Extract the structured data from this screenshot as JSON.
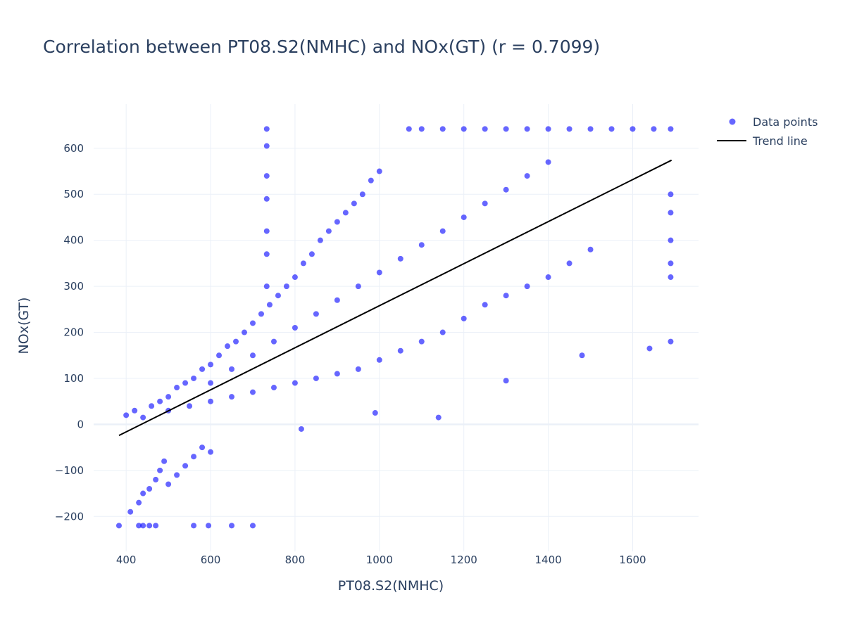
{
  "chart_data": {
    "type": "scatter",
    "title": "Correlation between PT08.S2(NMHC) and NOx(GT) (r = 0.7099)",
    "xlabel": "PT08.S2(NMHC)",
    "ylabel": "NOx(GT)",
    "xlim": [
      323,
      1756
    ],
    "ylim": [
      -276,
      696
    ],
    "xticks": [
      400,
      600,
      800,
      1000,
      1200,
      1400,
      1600
    ],
    "yticks": [
      -200,
      -100,
      0,
      100,
      200,
      300,
      400,
      500,
      600
    ],
    "grid": true,
    "legend_position": "top-right",
    "colors": {
      "points": "#0000ff",
      "trend": "#000000",
      "grid": "#ebf0f8",
      "text": "#2a3f5f"
    },
    "series": [
      {
        "name": "Data points",
        "mode": "markers",
        "points": [
          [
            383,
            -220
          ],
          [
            430,
            -220
          ],
          [
            440,
            -220
          ],
          [
            455,
            -220
          ],
          [
            470,
            -220
          ],
          [
            560,
            -220
          ],
          [
            595,
            -220
          ],
          [
            650,
            -220
          ],
          [
            700,
            -220
          ],
          [
            410,
            -190
          ],
          [
            430,
            -170
          ],
          [
            440,
            -150
          ],
          [
            455,
            -140
          ],
          [
            470,
            -120
          ],
          [
            480,
            -100
          ],
          [
            490,
            -80
          ],
          [
            500,
            -130
          ],
          [
            520,
            -110
          ],
          [
            540,
            -90
          ],
          [
            560,
            -70
          ],
          [
            580,
            -50
          ],
          [
            600,
            -60
          ],
          [
            400,
            20
          ],
          [
            420,
            30
          ],
          [
            440,
            15
          ],
          [
            460,
            40
          ],
          [
            480,
            50
          ],
          [
            500,
            60
          ],
          [
            520,
            80
          ],
          [
            540,
            90
          ],
          [
            560,
            100
          ],
          [
            580,
            120
          ],
          [
            600,
            130
          ],
          [
            620,
            150
          ],
          [
            640,
            170
          ],
          [
            660,
            180
          ],
          [
            680,
            200
          ],
          [
            700,
            220
          ],
          [
            720,
            240
          ],
          [
            740,
            260
          ],
          [
            760,
            280
          ],
          [
            780,
            300
          ],
          [
            800,
            320
          ],
          [
            820,
            350
          ],
          [
            840,
            370
          ],
          [
            860,
            400
          ],
          [
            880,
            420
          ],
          [
            900,
            440
          ],
          [
            920,
            460
          ],
          [
            940,
            480
          ],
          [
            960,
            500
          ],
          [
            980,
            530
          ],
          [
            1000,
            550
          ],
          [
            500,
            30
          ],
          [
            550,
            40
          ],
          [
            600,
            50
          ],
          [
            650,
            60
          ],
          [
            700,
            70
          ],
          [
            750,
            80
          ],
          [
            800,
            90
          ],
          [
            850,
            100
          ],
          [
            900,
            110
          ],
          [
            950,
            120
          ],
          [
            1000,
            140
          ],
          [
            1050,
            160
          ],
          [
            1100,
            180
          ],
          [
            1150,
            200
          ],
          [
            1200,
            230
          ],
          [
            1250,
            260
          ],
          [
            1300,
            280
          ],
          [
            1350,
            300
          ],
          [
            1400,
            320
          ],
          [
            1450,
            350
          ],
          [
            1500,
            380
          ],
          [
            600,
            90
          ],
          [
            650,
            120
          ],
          [
            700,
            150
          ],
          [
            750,
            180
          ],
          [
            800,
            210
          ],
          [
            850,
            240
          ],
          [
            900,
            270
          ],
          [
            950,
            300
          ],
          [
            1000,
            330
          ],
          [
            1050,
            360
          ],
          [
            1100,
            390
          ],
          [
            1150,
            420
          ],
          [
            1200,
            450
          ],
          [
            1250,
            480
          ],
          [
            1300,
            510
          ],
          [
            1350,
            540
          ],
          [
            1400,
            570
          ],
          [
            733,
            642
          ],
          [
            733,
            605
          ],
          [
            733,
            540
          ],
          [
            733,
            490
          ],
          [
            733,
            420
          ],
          [
            733,
            370
          ],
          [
            733,
            300
          ],
          [
            1070,
            642
          ],
          [
            1100,
            642
          ],
          [
            1150,
            642
          ],
          [
            1200,
            642
          ],
          [
            1250,
            642
          ],
          [
            1300,
            642
          ],
          [
            1350,
            642
          ],
          [
            1400,
            642
          ],
          [
            1450,
            642
          ],
          [
            1500,
            642
          ],
          [
            1550,
            642
          ],
          [
            1600,
            642
          ],
          [
            1650,
            642
          ],
          [
            1690,
            642
          ],
          [
            1690,
            500
          ],
          [
            1690,
            460
          ],
          [
            1690,
            400
          ],
          [
            1690,
            350
          ],
          [
            1690,
            320
          ],
          [
            1690,
            180
          ],
          [
            1640,
            165
          ],
          [
            1480,
            150
          ],
          [
            1300,
            95
          ],
          [
            1140,
            15
          ],
          [
            815,
            -10
          ],
          [
            990,
            25
          ]
        ]
      },
      {
        "name": "Trend line",
        "mode": "lines",
        "points": [
          [
            383,
            -24
          ],
          [
            1692,
            574
          ]
        ]
      }
    ]
  }
}
